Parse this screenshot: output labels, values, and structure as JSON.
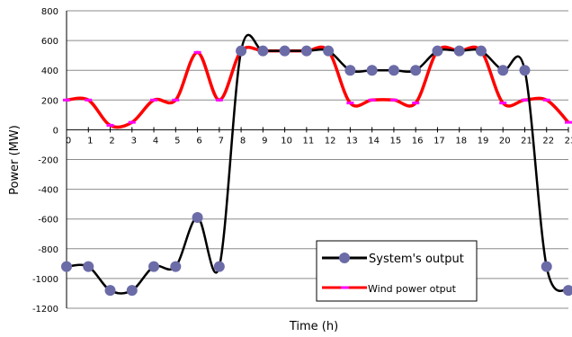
{
  "chart_data": {
    "type": "line",
    "xlabel": "Time (h)",
    "ylabel": "Power (MW)",
    "ylim": [
      -1200,
      800
    ],
    "xlim": [
      0,
      23
    ],
    "yticks": [
      800,
      600,
      400,
      200,
      0,
      -200,
      -400,
      -600,
      -800,
      -1000,
      -1200
    ],
    "xticks": [
      0,
      1,
      2,
      3,
      4,
      5,
      6,
      7,
      8,
      9,
      10,
      11,
      12,
      13,
      14,
      15,
      16,
      17,
      18,
      19,
      20,
      21,
      22,
      23
    ],
    "grid": true,
    "legend_position": "bottom-right",
    "series": [
      {
        "name": "System's output",
        "color": "#000000",
        "marker_color": "#6b6ba8",
        "marker": "circle",
        "x": [
          0,
          1,
          2,
          3,
          4,
          5,
          6,
          7,
          8,
          9,
          10,
          11,
          12,
          13,
          14,
          15,
          16,
          17,
          18,
          19,
          20,
          21,
          22,
          23
        ],
        "values": [
          -920,
          -920,
          -1080,
          -1080,
          -920,
          -920,
          -590,
          -920,
          530,
          530,
          530,
          530,
          530,
          400,
          400,
          400,
          400,
          530,
          530,
          530,
          400,
          400,
          -920,
          -1080
        ]
      },
      {
        "name": "Wind power otput",
        "color": "#ff0000",
        "marker_color": "#ff00ff",
        "marker": "dash",
        "x": [
          0,
          1,
          2,
          3,
          4,
          5,
          6,
          7,
          8,
          9,
          10,
          11,
          12,
          13,
          14,
          15,
          16,
          17,
          18,
          19,
          20,
          21,
          22,
          23
        ],
        "values": [
          200,
          200,
          30,
          50,
          200,
          200,
          520,
          200,
          530,
          530,
          530,
          530,
          530,
          180,
          200,
          200,
          180,
          530,
          530,
          530,
          180,
          200,
          200,
          50
        ]
      }
    ]
  }
}
